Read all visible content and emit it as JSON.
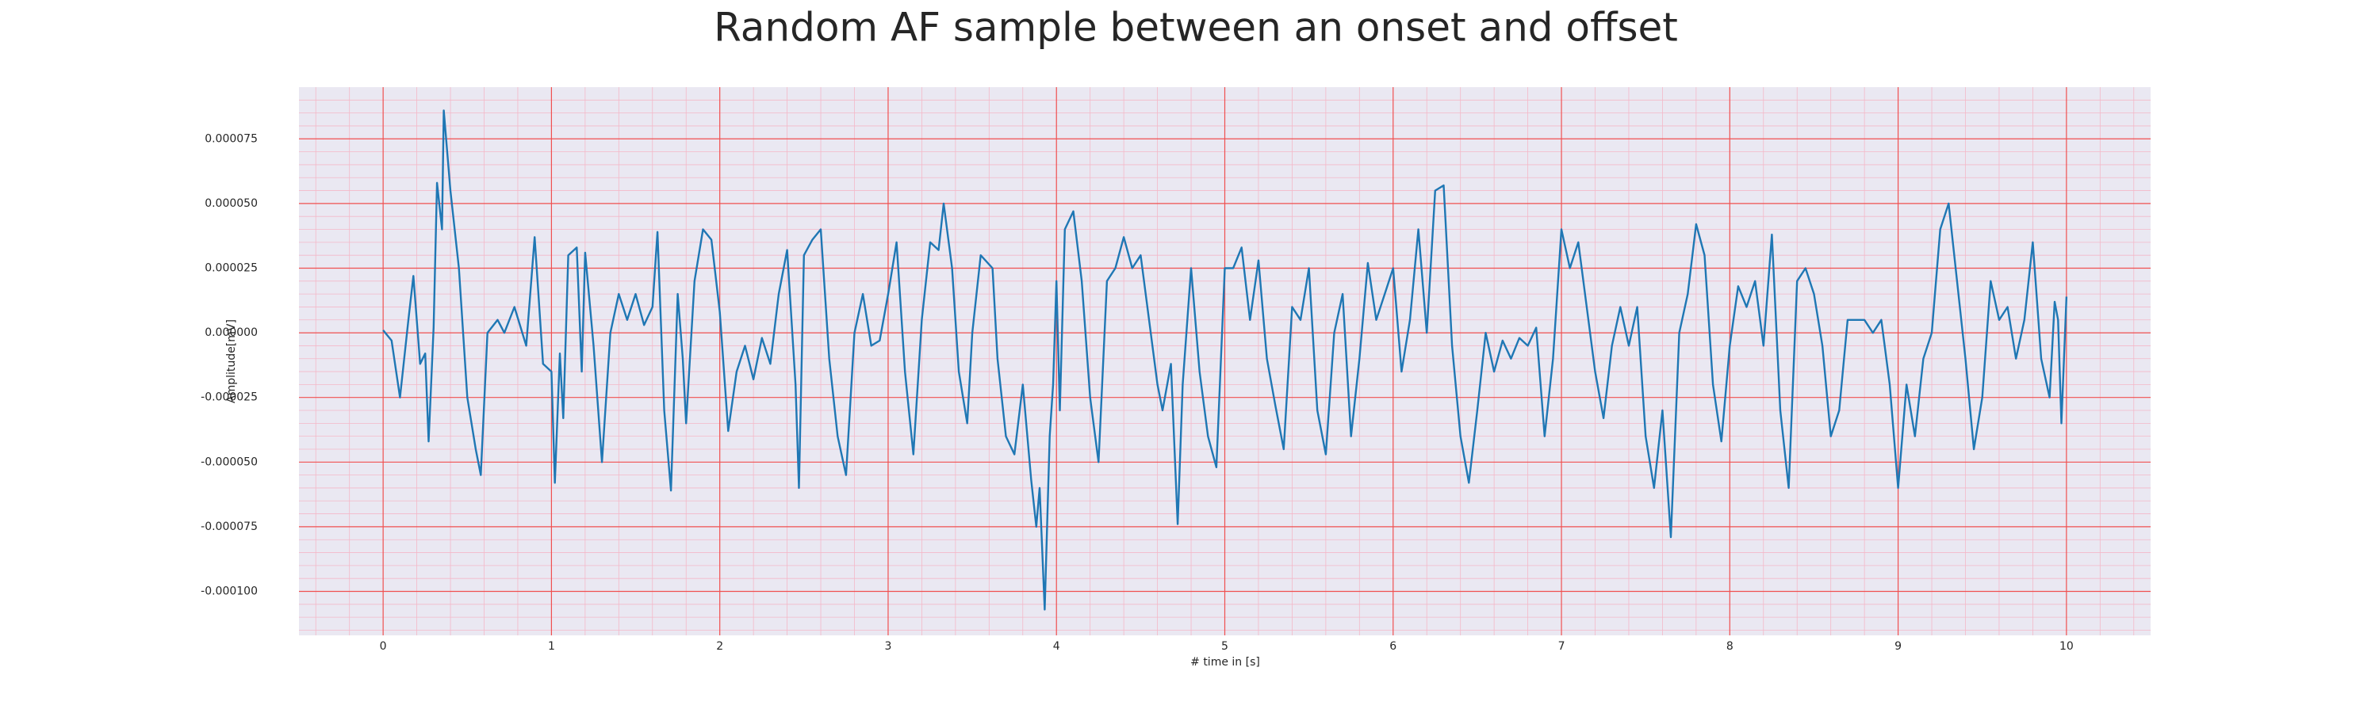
{
  "chart_data": {
    "type": "line",
    "title": "Random AF sample between an onset and offset",
    "x_label": "# time in [s]",
    "y_label": "Amplitude[mV]",
    "color": "#1f77b4",
    "grid": true,
    "minor_grid": true,
    "xlim": [
      -0.5,
      10.5
    ],
    "ylim": [
      -0.000117,
      9.5e-05
    ],
    "xticks": [
      0,
      1,
      2,
      3,
      4,
      5,
      6,
      7,
      8,
      9,
      10
    ],
    "yticks": [
      {
        "value": -0.0001,
        "label": "-0.000100"
      },
      -7.5e-05,
      {
        "value": -5e-05,
        "label": "-0.000050"
      },
      -2.5e-05,
      {
        "value": 0,
        "label": "0.000000"
      },
      2.5e-05,
      {
        "value": 5e-05,
        "label": "0.000050"
      },
      7.5e-05
    ],
    "x": [
      0,
      0.05,
      0.1,
      0.15,
      0.18,
      0.22,
      0.25,
      0.27,
      0.3,
      0.32,
      0.35,
      0.36,
      0.4,
      0.45,
      0.5,
      0.55,
      0.58,
      0.62,
      0.68,
      0.72,
      0.78,
      0.85,
      0.9,
      0.95,
      1,
      1.02,
      1.05,
      1.07,
      1.1,
      1.15,
      1.18,
      1.2,
      1.25,
      1.3,
      1.35,
      1.4,
      1.45,
      1.5,
      1.55,
      1.6,
      1.63,
      1.67,
      1.71,
      1.75,
      1.78,
      1.8,
      1.85,
      1.9,
      1.95,
      2,
      2.05,
      2.1,
      2.15,
      2.2,
      2.25,
      2.3,
      2.35,
      2.4,
      2.45,
      2.47,
      2.5,
      2.55,
      2.6,
      2.65,
      2.7,
      2.75,
      2.8,
      2.85,
      2.9,
      2.95,
      3,
      3.05,
      3.1,
      3.15,
      3.2,
      3.25,
      3.3,
      3.33,
      3.38,
      3.42,
      3.47,
      3.5,
      3.55,
      3.62,
      3.65,
      3.7,
      3.75,
      3.8,
      3.85,
      3.88,
      3.9,
      3.93,
      3.96,
      3.98,
      4,
      4.02,
      4.05,
      4.1,
      4.15,
      4.2,
      4.25,
      4.3,
      4.35,
      4.4,
      4.45,
      4.5,
      4.55,
      4.6,
      4.63,
      4.68,
      4.72,
      4.75,
      4.8,
      4.85,
      4.9,
      4.95,
      5,
      5.05,
      5.1,
      5.15,
      5.2,
      5.25,
      5.3,
      5.35,
      5.4,
      5.45,
      5.5,
      5.55,
      5.6,
      5.65,
      5.7,
      5.75,
      5.8,
      5.85,
      5.9,
      5.95,
      6,
      6.05,
      6.1,
      6.15,
      6.2,
      6.25,
      6.3,
      6.35,
      6.4,
      6.45,
      6.5,
      6.55,
      6.6,
      6.65,
      6.7,
      6.75,
      6.8,
      6.85,
      6.9,
      6.95,
      7,
      7.05,
      7.1,
      7.15,
      7.2,
      7.25,
      7.3,
      7.35,
      7.4,
      7.45,
      7.5,
      7.55,
      7.6,
      7.65,
      7.7,
      7.75,
      7.8,
      7.85,
      7.9,
      7.95,
      8,
      8.05,
      8.1,
      8.15,
      8.2,
      8.25,
      8.3,
      8.35,
      8.4,
      8.45,
      8.5,
      8.55,
      8.6,
      8.65,
      8.7,
      8.75,
      8.8,
      8.85,
      8.9,
      8.95,
      9,
      9.05,
      9.1,
      9.15,
      9.2,
      9.25,
      9.3,
      9.35,
      9.4,
      9.45,
      9.5,
      9.55,
      9.6,
      9.65,
      9.7,
      9.75,
      9.8,
      9.85,
      9.9,
      9.93,
      9.95,
      9.97,
      10
    ],
    "values": [
      1e-06,
      -3e-06,
      -2.5e-05,
      5e-06,
      2.2e-05,
      -1.2e-05,
      -8e-06,
      -4.2e-05,
      2e-06,
      5.8e-05,
      4e-05,
      8.6e-05,
      5.5e-05,
      2.5e-05,
      -2.5e-05,
      -4.5e-05,
      -5.5e-05,
      0,
      5e-06,
      0,
      1e-05,
      -5e-06,
      3.7e-05,
      -1.2e-05,
      -1.5e-05,
      -5.8e-05,
      -8e-06,
      -3.3e-05,
      3e-05,
      3.3e-05,
      -1.5e-05,
      3.1e-05,
      -5e-06,
      -5e-05,
      0,
      1.5e-05,
      5e-06,
      1.5e-05,
      3e-06,
      1e-05,
      3.9e-05,
      -3e-05,
      -6.1e-05,
      1.5e-05,
      -1e-05,
      -3.5e-05,
      2e-05,
      4e-05,
      3.6e-05,
      8e-06,
      -3.8e-05,
      -1.5e-05,
      -5e-06,
      -1.8e-05,
      -2e-06,
      -1.2e-05,
      1.5e-05,
      3.2e-05,
      -2e-05,
      -6e-05,
      3e-05,
      3.6e-05,
      4e-05,
      -1e-05,
      -4e-05,
      -5.5e-05,
      0,
      1.5e-05,
      -5e-06,
      -3e-06,
      1.5e-05,
      3.5e-05,
      -1.5e-05,
      -4.7e-05,
      5e-06,
      3.5e-05,
      3.2e-05,
      5e-05,
      2.5e-05,
      -1.5e-05,
      -3.5e-05,
      0,
      3e-05,
      2.5e-05,
      -1e-05,
      -4e-05,
      -4.7e-05,
      -2e-05,
      -5.7e-05,
      -7.5e-05,
      -6e-05,
      -0.000107,
      -4e-05,
      -2e-05,
      2e-05,
      -3e-05,
      4e-05,
      4.7e-05,
      2e-05,
      -2.5e-05,
      -5e-05,
      2e-05,
      2.5e-05,
      3.7e-05,
      2.5e-05,
      3e-05,
      5e-06,
      -2e-05,
      -3e-05,
      -1.2e-05,
      -7.4e-05,
      -2e-05,
      2.5e-05,
      -1.5e-05,
      -4e-05,
      -5.2e-05,
      2.5e-05,
      2.5e-05,
      3.3e-05,
      5e-06,
      2.8e-05,
      -1e-05,
      -2.8e-05,
      -4.5e-05,
      1e-05,
      5e-06,
      2.5e-05,
      -3e-05,
      -4.7e-05,
      0,
      1.5e-05,
      -4e-05,
      -1e-05,
      2.7e-05,
      5e-06,
      1.5e-05,
      2.5e-05,
      -1.5e-05,
      5e-06,
      4e-05,
      0,
      5.5e-05,
      5.7e-05,
      -5e-06,
      -4e-05,
      -5.8e-05,
      -3e-05,
      0,
      -1.5e-05,
      -3e-06,
      -1e-05,
      -2e-06,
      -5e-06,
      2e-06,
      -4e-05,
      -1e-05,
      4e-05,
      2.5e-05,
      3.5e-05,
      1e-05,
      -1.5e-05,
      -3.3e-05,
      -5e-06,
      1e-05,
      -5e-06,
      1e-05,
      -4e-05,
      -6e-05,
      -3e-05,
      -7.9e-05,
      0,
      1.5e-05,
      4.2e-05,
      3e-05,
      -2e-05,
      -4.2e-05,
      -5e-06,
      1.8e-05,
      1e-05,
      2e-05,
      -5e-06,
      3.8e-05,
      -3e-05,
      -6e-05,
      2e-05,
      2.5e-05,
      1.5e-05,
      -5e-06,
      -4e-05,
      -3e-05,
      5e-06,
      5e-06,
      5e-06,
      0,
      5e-06,
      -2e-05,
      -6e-05,
      -2e-05,
      -4e-05,
      -1e-05,
      0,
      4e-05,
      5e-05,
      2e-05,
      -1e-05,
      -4.5e-05,
      -2.5e-05,
      2e-05,
      5e-06,
      1e-05,
      -1e-05,
      5e-06,
      3.5e-05,
      -1e-05,
      -2.5e-05,
      1.2e-05,
      5e-06,
      -3.5e-05,
      1.4e-05
    ]
  }
}
